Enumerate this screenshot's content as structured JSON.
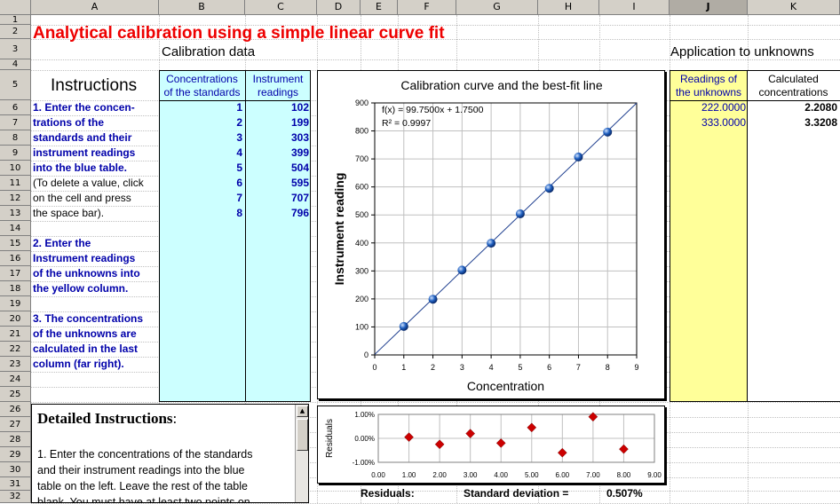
{
  "columns": [
    "A",
    "B",
    "C",
    "D",
    "E",
    "F",
    "G",
    "H",
    "I",
    "J",
    "K"
  ],
  "rows": [
    "1",
    "2",
    "3",
    "4",
    "5",
    "6",
    "7",
    "8",
    "9",
    "10",
    "11",
    "12",
    "13",
    "14",
    "15",
    "16",
    "17",
    "18",
    "19",
    "20",
    "21",
    "22",
    "23",
    "24",
    "25",
    "26",
    "27",
    "28",
    "29",
    "30",
    "31",
    "32"
  ],
  "title": "Analytical calibration using a simple linear curve fit",
  "calibration_header": "Calibration data",
  "application_header": "Application to unknowns",
  "instructions_header": "Instructions",
  "table": {
    "col_b_header": [
      "Concentrations",
      "of the standards"
    ],
    "col_c_header": [
      "Instrument",
      "readings"
    ],
    "concentrations": [
      "1",
      "2",
      "3",
      "4",
      "5",
      "6",
      "7",
      "8"
    ],
    "readings": [
      "102",
      "199",
      "303",
      "399",
      "504",
      "595",
      "707",
      "796"
    ]
  },
  "unknowns": {
    "col_j_header": [
      "Readings of",
      "the unknowns"
    ],
    "col_k_header": [
      "Calculated",
      "concentrations"
    ],
    "readings": [
      "222.0000",
      "333.0000"
    ],
    "concentrations": [
      "2.2080",
      "3.3208"
    ]
  },
  "instructions": {
    "step1": [
      "1. Enter the concen-",
      "trations of the",
      "standards and their",
      "instrument readings",
      "into the blue table."
    ],
    "step1_note": [
      "(To delete a value, click",
      " on the cell and press",
      " the space bar)."
    ],
    "step2": [
      "2. Enter the",
      "Instrument readings",
      "of the unknowns into",
      "the yellow column."
    ],
    "step3": [
      "3. The concentrations",
      "of the unknowns are",
      "calculated in the last",
      "column (far right)."
    ]
  },
  "detailed": {
    "title": "Detailed Instructions",
    "title_suffix": ":",
    "lines": [
      "1. Enter the concentrations of the standards",
      "and their instrument readings into the blue",
      "table on the left. Leave the rest of the table",
      "blank. You must have at least two points on"
    ]
  },
  "chart_data": [
    {
      "type": "scatter",
      "title": "Calibration curve and the best-fit line",
      "xlabel": "Concentration",
      "ylabel": "Instrument reading",
      "xlim": [
        0,
        9
      ],
      "ylim": [
        0,
        900
      ],
      "xticks": [
        "0",
        "1",
        "2",
        "3",
        "4",
        "5",
        "6",
        "7",
        "8",
        "9"
      ],
      "yticks": [
        "0",
        "100",
        "200",
        "300",
        "400",
        "500",
        "600",
        "700",
        "800",
        "900"
      ],
      "grid": true,
      "annotations": [
        "f(x) = 99.7500x + 1.7500",
        "R² = 0.9997"
      ],
      "fit": {
        "slope": 99.75,
        "intercept": 1.75
      },
      "x": [
        1,
        2,
        3,
        4,
        5,
        6,
        7,
        8
      ],
      "y": [
        102,
        199,
        303,
        399,
        504,
        595,
        707,
        796
      ],
      "point_color": "#1f5fbf",
      "line_color": "#1f3f8f"
    },
    {
      "type": "scatter",
      "title": "",
      "xlabel": "",
      "ylabel": "Residuals",
      "xlim": [
        0,
        9
      ],
      "ylim": [
        -1,
        1
      ],
      "xticks": [
        "0.00",
        "1.00",
        "2.00",
        "3.00",
        "4.00",
        "5.00",
        "6.00",
        "7.00",
        "8.00",
        "9.00"
      ],
      "yticks": [
        "-1.00%",
        "0.00%",
        "1.00%"
      ],
      "grid": true,
      "x": [
        1,
        2,
        3,
        4,
        5,
        6,
        7,
        8
      ],
      "y": [
        0.05,
        -0.25,
        0.2,
        -0.2,
        0.45,
        -0.6,
        0.9,
        -0.45
      ],
      "point_color": "#cc0000"
    }
  ],
  "residuals_row": {
    "label": "Residuals:",
    "sd_label": "Standard deviation =",
    "sd_value": "0.507%"
  },
  "colors": {
    "blue_table": "#ccffff",
    "yellow_table": "#ffff99",
    "title_red": "#ee0000",
    "instr_blue": "#0000aa"
  }
}
